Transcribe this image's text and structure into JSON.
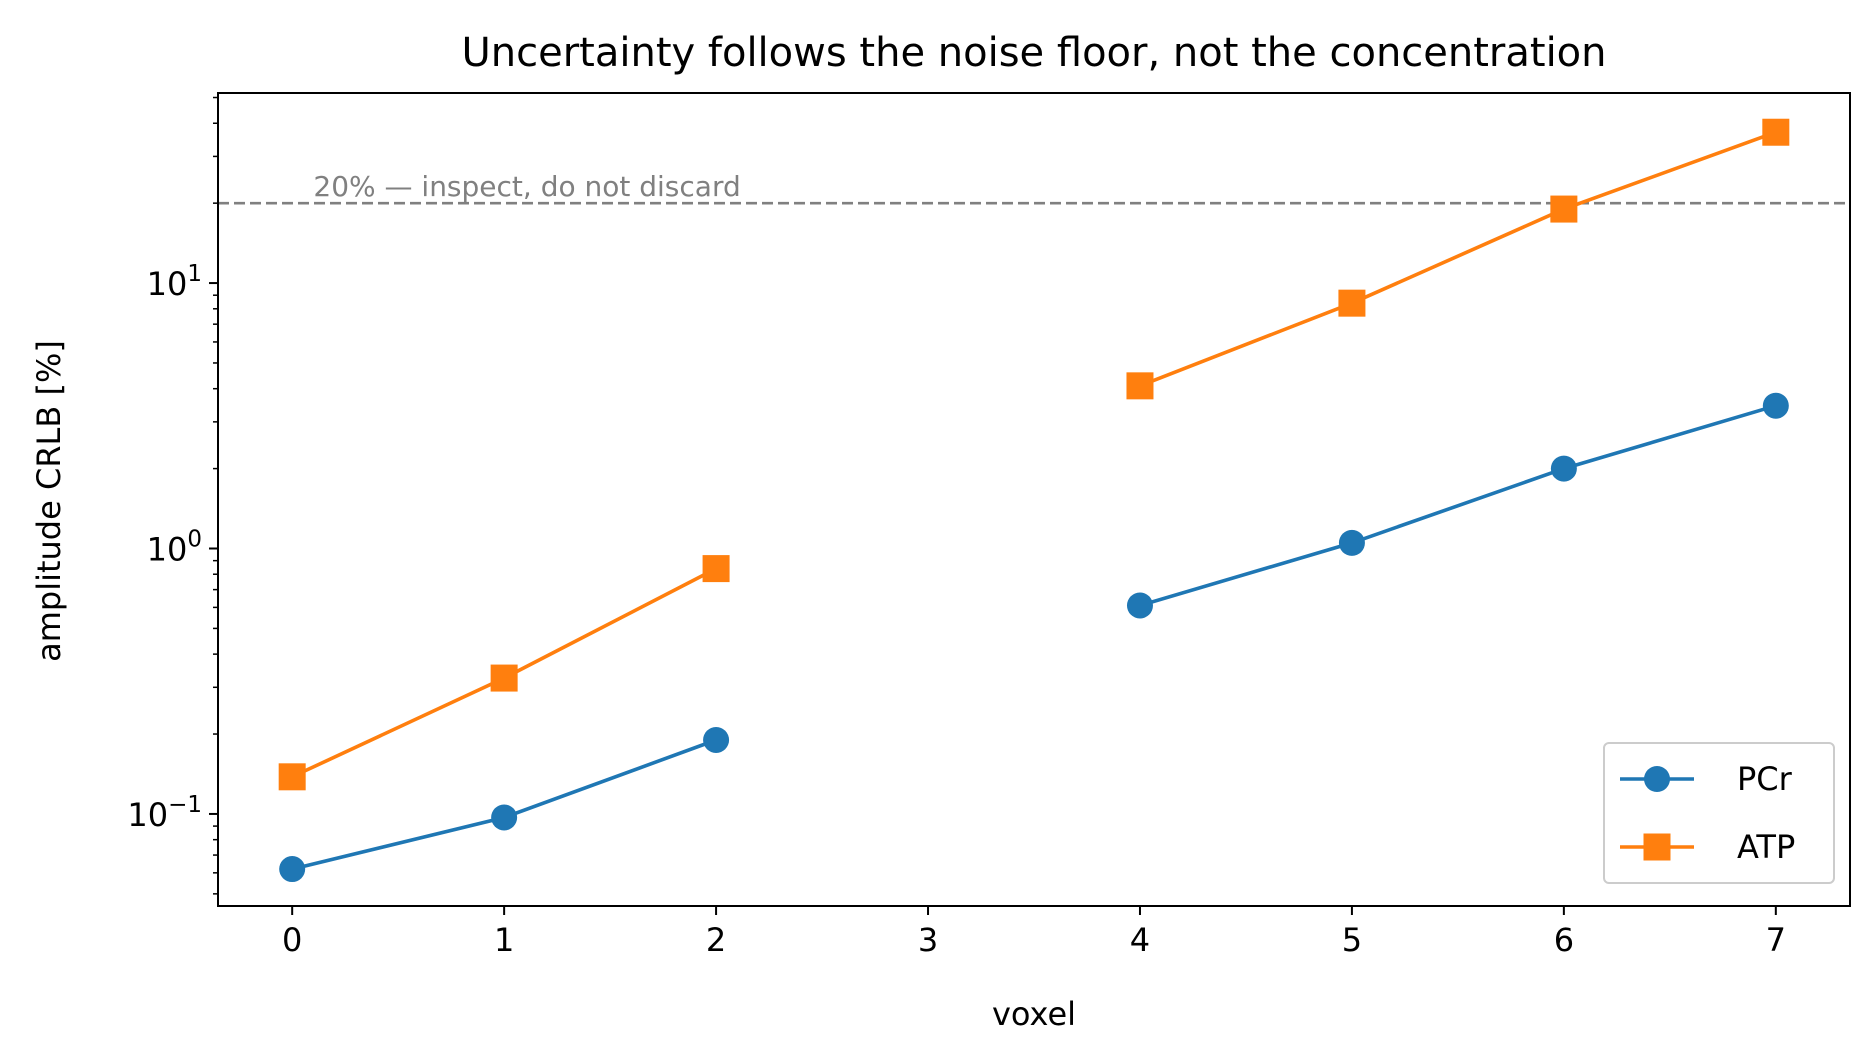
{
  "chart_data": {
    "type": "line",
    "title": "Uncertainty follows the noise floor, not the concentration",
    "xlabel": "voxel",
    "ylabel": "amplitude CRLB [%]",
    "yscale": "log",
    "xlim": [
      -0.35,
      7.35
    ],
    "ylim": [
      0.045,
      52
    ],
    "x_ticks": [
      "0",
      "1",
      "2",
      "3",
      "4",
      "5",
      "6",
      "7"
    ],
    "y_ticks": [
      {
        "value": 0.1,
        "base": "10",
        "exp": "−1"
      },
      {
        "value": 1,
        "base": "10",
        "exp": "0"
      },
      {
        "value": 10,
        "base": "10",
        "exp": "1"
      }
    ],
    "grid": false,
    "legend_position": "lower-right",
    "threshold": {
      "value": 20,
      "label": "20% — inspect, do not discard",
      "color": "#808080"
    },
    "series": [
      {
        "name": "PCr",
        "color": "#1f77b4",
        "marker": "circle",
        "points": [
          [
            0,
            0.062
          ],
          [
            1,
            0.097
          ],
          [
            2,
            0.19
          ],
          [
            4,
            0.61
          ],
          [
            5,
            1.05
          ],
          [
            6,
            2.0
          ],
          [
            7,
            3.45
          ]
        ]
      },
      {
        "name": "ATP",
        "color": "#ff7f0e",
        "marker": "square",
        "points": [
          [
            0,
            0.138
          ],
          [
            1,
            0.325
          ],
          [
            2,
            0.84
          ],
          [
            4,
            4.1
          ],
          [
            5,
            8.4
          ],
          [
            6,
            19.0
          ],
          [
            7,
            37.0
          ]
        ]
      }
    ]
  }
}
